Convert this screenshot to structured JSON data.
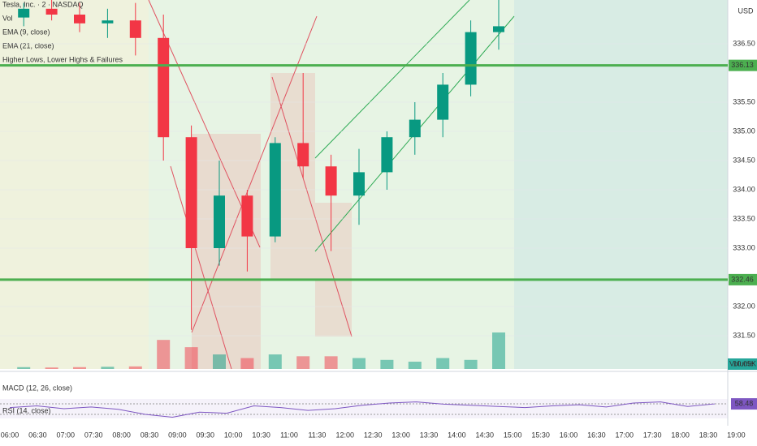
{
  "chart_data": {
    "type": "candlestick",
    "title": "Tesla, Inc. · 2 · NASDAQ",
    "currency": "USD",
    "indicators": [
      "Vol",
      "EMA (9, close)",
      "EMA (21, close)",
      "Higher Lows, Lower Highs & Failures"
    ],
    "x_labels": [
      "06:00",
      "06:30",
      "07:00",
      "07:30",
      "08:00",
      "08:30",
      "09:00",
      "09:30",
      "10:00",
      "10:30",
      "11:00",
      "11:30",
      "12:00",
      "12:30",
      "13:00",
      "13:30",
      "14:00",
      "14:30",
      "15:00",
      "15:30",
      "16:00",
      "16:30",
      "17:00",
      "17:30",
      "18:00",
      "18:30",
      "19:00"
    ],
    "x": [
      "06:00",
      "06:30",
      "07:00",
      "07:30",
      "08:00",
      "08:30",
      "09:00",
      "09:30",
      "10:00",
      "10:30",
      "11:00",
      "11:30",
      "12:00",
      "12:30",
      "13:00",
      "13:30",
      "14:00",
      "14:30"
    ],
    "open": [
      336.95,
      337.1,
      337.0,
      336.85,
      336.9,
      336.6,
      334.9,
      333.0,
      333.9,
      333.2,
      334.8,
      334.4,
      333.9,
      334.3,
      334.9,
      335.2,
      335.8,
      336.7
    ],
    "high": [
      337.2,
      337.25,
      337.2,
      337.1,
      337.2,
      337.0,
      335.1,
      334.5,
      334.0,
      334.9,
      336.0,
      334.6,
      334.7,
      335.0,
      335.5,
      336.0,
      336.9,
      337.25
    ],
    "low": [
      336.8,
      336.9,
      336.7,
      336.6,
      336.3,
      334.5,
      331.6,
      332.7,
      332.6,
      333.1,
      334.2,
      332.95,
      333.4,
      334.0,
      334.6,
      334.9,
      335.6,
      336.4
    ],
    "close": [
      337.1,
      337.0,
      336.85,
      336.9,
      336.6,
      334.9,
      333.0,
      333.9,
      333.2,
      334.8,
      334.4,
      333.9,
      334.3,
      334.9,
      335.2,
      335.8,
      336.7,
      336.8
    ],
    "volume": [
      0.5,
      0.4,
      0.5,
      0.6,
      0.7,
      8,
      6,
      4,
      3,
      4,
      3.5,
      3.5,
      3,
      2.5,
      2,
      3,
      2.5,
      10.05
    ],
    "volume_title": "Volume",
    "volume_label": "10.05K",
    "up_color": "#089981",
    "down_color": "#f23645",
    "ylim": [
      331.0,
      337.25
    ],
    "yticks": [
      {
        "value": 331.5,
        "label": "331.50"
      },
      {
        "value": 332,
        "label": "332.00"
      },
      {
        "value": 333,
        "label": "333.00"
      },
      {
        "value": 333.5,
        "label": "333.50"
      },
      {
        "value": 334,
        "label": "334.00"
      },
      {
        "value": 334.5,
        "label": "334.50"
      },
      {
        "value": 335,
        "label": "335.00"
      },
      {
        "value": 335.5,
        "label": "335.50"
      },
      {
        "value": 336.5,
        "label": "336.50"
      }
    ],
    "levels": [
      336.13,
      332.46
    ],
    "level_color": "#4caf50",
    "macd_title": "MACD (12, 26, close)",
    "rsi_title": "RSI (14, close)",
    "rsi": [
      52,
      55,
      50,
      53,
      49,
      40,
      35,
      44,
      42,
      55,
      52,
      47,
      50,
      56,
      60,
      62,
      58,
      56,
      54,
      52,
      55,
      57,
      53,
      60,
      62,
      54,
      58.48
    ],
    "rsi_ylim": [
      30,
      70
    ],
    "rsi_color": "#7e57c2"
  }
}
